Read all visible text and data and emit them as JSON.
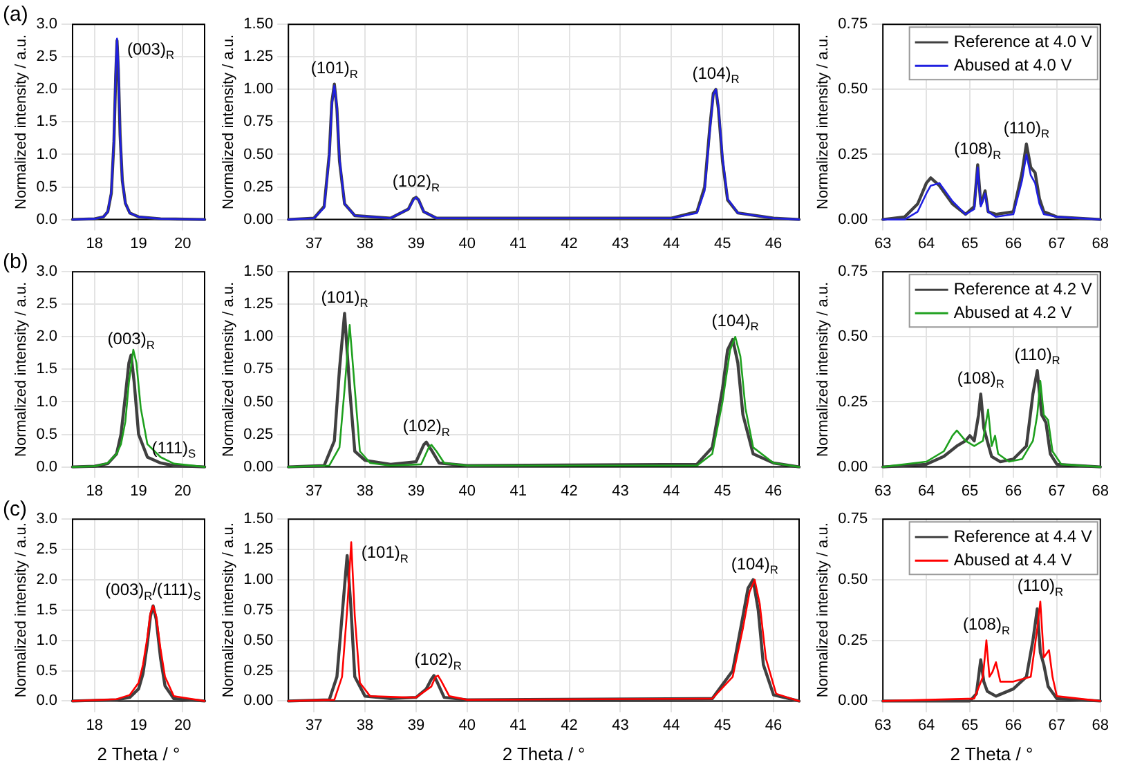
{
  "chart_data": [
    {
      "type": "line",
      "title": "(a)",
      "ylabel": "Normalized intensity / a.u.",
      "xlim": [
        17.5,
        20.5
      ],
      "xticks": [
        18,
        19,
        20
      ],
      "ylim": [
        0,
        3
      ],
      "yticks": [
        {
          "value": 0,
          "label": "0.0"
        },
        {
          "value": 0.5,
          "label": "0.5"
        },
        {
          "value": 1,
          "label": "1.0"
        },
        {
          "value": 1.5,
          "label": "1.5"
        },
        {
          "value": 2,
          "label": "2.0"
        },
        {
          "value": 2.5,
          "label": "2.5"
        },
        {
          "value": 3,
          "label": "3.0"
        }
      ],
      "grid": true,
      "marker": "none",
      "annotations": [
        {
          "text": "(003)$_{R}$",
          "x": 18.51,
          "y": 2.78
        }
      ],
      "series": [
        {
          "color": "#404040",
          "x": [
            17.5,
            18.0,
            18.2,
            18.3,
            18.38,
            18.44,
            18.48,
            18.51,
            18.54,
            18.58,
            18.63,
            18.7,
            18.8,
            19.0,
            19.5,
            20.5
          ],
          "values": [
            0,
            0.01,
            0.04,
            0.12,
            0.4,
            1.2,
            2.2,
            2.75,
            2.3,
            1.3,
            0.6,
            0.25,
            0.1,
            0.04,
            0.01,
            0
          ]
        },
        {
          "color": "#1f1fe0",
          "x": [
            17.5,
            18.0,
            18.2,
            18.3,
            18.38,
            18.44,
            18.48,
            18.51,
            18.54,
            18.58,
            18.63,
            18.7,
            18.8,
            19.0,
            19.5,
            20.5
          ],
          "values": [
            0,
            0.01,
            0.04,
            0.12,
            0.42,
            1.25,
            2.3,
            2.78,
            2.35,
            1.3,
            0.6,
            0.25,
            0.1,
            0.04,
            0.01,
            0
          ]
        }
      ]
    },
    {
      "type": "line",
      "ylabel": "Normalized intensity / a.u.",
      "xlim": [
        36.5,
        46.5
      ],
      "xticks": [
        37,
        38,
        39,
        40,
        41,
        42,
        43,
        44,
        45,
        46
      ],
      "ylim": [
        0,
        1.5
      ],
      "yticks": [
        {
          "value": 0,
          "label": "0.00"
        },
        {
          "value": 0.25,
          "label": "0.25"
        },
        {
          "value": 0.5,
          "label": "0.50"
        },
        {
          "value": 0.75,
          "label": "0.75"
        },
        {
          "value": 1,
          "label": "1.00"
        },
        {
          "value": 1.25,
          "label": "1.25"
        },
        {
          "value": 1.5,
          "label": "1.50"
        }
      ],
      "grid": true,
      "marker": "none",
      "annotations": [
        {
          "text": "(101)$_{R}$",
          "x": 37.4,
          "y": 1.04
        },
        {
          "text": "(102)$_{R}$",
          "x": 39.0,
          "y": 0.17
        },
        {
          "text": "(104)$_{R}$",
          "x": 44.87,
          "y": 1.0
        }
      ],
      "series": [
        {
          "color": "#404040",
          "x": [
            36.5,
            37.0,
            37.2,
            37.3,
            37.35,
            37.4,
            37.45,
            37.5,
            37.6,
            37.8,
            38.5,
            38.85,
            38.95,
            39.0,
            39.05,
            39.15,
            39.4,
            44.0,
            44.5,
            44.65,
            44.75,
            44.82,
            44.87,
            44.92,
            45.0,
            45.1,
            45.3,
            46.0,
            46.5
          ],
          "values": [
            0,
            0.01,
            0.1,
            0.5,
            0.9,
            1.04,
            0.85,
            0.45,
            0.12,
            0.03,
            0.01,
            0.08,
            0.16,
            0.17,
            0.15,
            0.06,
            0.01,
            0.01,
            0.06,
            0.25,
            0.7,
            0.97,
            1.0,
            0.85,
            0.45,
            0.15,
            0.05,
            0.01,
            0
          ]
        },
        {
          "color": "#1f1fe0",
          "x": [
            36.5,
            37.0,
            37.2,
            37.3,
            37.35,
            37.4,
            37.45,
            37.5,
            37.6,
            37.8,
            38.5,
            38.85,
            38.95,
            39.0,
            39.05,
            39.15,
            39.4,
            44.0,
            44.5,
            44.65,
            44.75,
            44.82,
            44.87,
            44.92,
            45.0,
            45.1,
            45.3,
            46.0,
            46.5
          ],
          "values": [
            0,
            0.01,
            0.09,
            0.48,
            0.88,
            1.03,
            0.87,
            0.47,
            0.12,
            0.03,
            0.01,
            0.08,
            0.15,
            0.17,
            0.15,
            0.06,
            0.01,
            0.01,
            0.05,
            0.22,
            0.67,
            0.96,
            1.0,
            0.87,
            0.48,
            0.16,
            0.05,
            0.01,
            0
          ]
        }
      ]
    },
    {
      "type": "line",
      "ylabel": "Normalized intensity / a.u.",
      "xlim": [
        63,
        68
      ],
      "xticks": [
        63,
        64,
        65,
        66,
        67,
        68
      ],
      "ylim": [
        0,
        0.75
      ],
      "yticks": [
        {
          "value": 0,
          "label": "0.00"
        },
        {
          "value": 0.25,
          "label": "0.25"
        },
        {
          "value": 0.5,
          "label": "0.50"
        },
        {
          "value": 0.75,
          "label": "0.75"
        }
      ],
      "grid": true,
      "marker": "none",
      "legend": "top right",
      "annotations": [
        {
          "text": "(108)$_{R}$",
          "x": 65.18,
          "y": 0.21
        },
        {
          "text": "(110)$_{R}$",
          "x": 66.3,
          "y": 0.29
        }
      ],
      "series": [
        {
          "name": "Reference at 4.0 V",
          "color": "#404040",
          "x": [
            63,
            63.5,
            63.8,
            64.0,
            64.1,
            64.3,
            64.6,
            64.9,
            65.1,
            65.18,
            65.25,
            65.3,
            65.35,
            65.42,
            65.6,
            66.0,
            66.2,
            66.3,
            66.4,
            66.5,
            66.6,
            66.7,
            67.0,
            68
          ],
          "values": [
            0,
            0.01,
            0.06,
            0.14,
            0.16,
            0.13,
            0.06,
            0.02,
            0.05,
            0.21,
            0.06,
            0.08,
            0.11,
            0.03,
            0.02,
            0.03,
            0.18,
            0.29,
            0.2,
            0.18,
            0.08,
            0.03,
            0.01,
            0
          ]
        },
        {
          "name": "Abused at 4.0 V",
          "color": "#1f1fe0",
          "x": [
            63,
            63.5,
            63.8,
            64.0,
            64.1,
            64.3,
            64.6,
            64.9,
            65.1,
            65.18,
            65.25,
            65.3,
            65.35,
            65.42,
            65.6,
            66.0,
            66.2,
            66.3,
            66.4,
            66.5,
            66.6,
            66.7,
            67.0,
            68
          ],
          "values": [
            0,
            0,
            0.03,
            0.1,
            0.13,
            0.14,
            0.07,
            0.02,
            0.04,
            0.2,
            0.05,
            0.07,
            0.1,
            0.03,
            0.01,
            0.02,
            0.15,
            0.25,
            0.17,
            0.14,
            0.06,
            0.02,
            0.01,
            0
          ]
        }
      ]
    },
    {
      "type": "line",
      "title": "(b)",
      "ylabel": "Normalized intensity / a.u.",
      "xlim": [
        17.5,
        20.5
      ],
      "xticks": [
        18,
        19,
        20
      ],
      "ylim": [
        0,
        3
      ],
      "yticks": [
        {
          "value": 0,
          "label": "0.0"
        },
        {
          "value": 0.5,
          "label": "0.5"
        },
        {
          "value": 1,
          "label": "1.0"
        },
        {
          "value": 1.5,
          "label": "1.5"
        },
        {
          "value": 2,
          "label": "2.0"
        },
        {
          "value": 2.5,
          "label": "2.5"
        },
        {
          "value": 3,
          "label": "3.0"
        }
      ],
      "grid": true,
      "marker": "none",
      "annotations": [
        {
          "text": "(003)$_{R}$",
          "x": 18.83,
          "y": 1.72
        },
        {
          "text": "(111)$_{S}$",
          "x": 19.8,
          "y": 0.05
        }
      ],
      "series": [
        {
          "color": "#404040",
          "x": [
            17.5,
            18.0,
            18.3,
            18.5,
            18.6,
            18.7,
            18.78,
            18.83,
            18.9,
            19.0,
            19.2,
            19.5,
            19.8,
            20.5
          ],
          "values": [
            0,
            0.01,
            0.05,
            0.2,
            0.5,
            1.1,
            1.6,
            1.72,
            1.3,
            0.5,
            0.15,
            0.06,
            0.02,
            0
          ]
        },
        {
          "color": "#1ea01e",
          "x": [
            17.5,
            18.0,
            18.3,
            18.5,
            18.6,
            18.7,
            18.78,
            18.88,
            18.95,
            19.05,
            19.2,
            19.5,
            19.8,
            20.5
          ],
          "values": [
            0,
            0.01,
            0.06,
            0.2,
            0.35,
            0.7,
            1.3,
            1.8,
            1.6,
            0.9,
            0.35,
            0.15,
            0.05,
            0
          ]
        }
      ]
    },
    {
      "type": "line",
      "ylabel": "Normalized intensity / a.u.",
      "xlim": [
        36.5,
        46.5
      ],
      "xticks": [
        37,
        38,
        39,
        40,
        41,
        42,
        43,
        44,
        45,
        46
      ],
      "ylim": [
        0,
        1.5
      ],
      "yticks": [
        {
          "value": 0,
          "label": "0.00"
        },
        {
          "value": 0.25,
          "label": "0.25"
        },
        {
          "value": 0.5,
          "label": "0.50"
        },
        {
          "value": 0.75,
          "label": "0.75"
        },
        {
          "value": 1,
          "label": "1.00"
        },
        {
          "value": 1.25,
          "label": "1.25"
        },
        {
          "value": 1.5,
          "label": "1.50"
        }
      ],
      "grid": true,
      "marker": "none",
      "annotations": [
        {
          "text": "(101)$_{R}$",
          "x": 37.6,
          "y": 1.18
        },
        {
          "text": "(102)$_{R}$",
          "x": 39.2,
          "y": 0.19
        },
        {
          "text": "(104)$_{R}$",
          "x": 45.25,
          "y": 1.0
        }
      ],
      "series": [
        {
          "color": "#404040",
          "x": [
            36.5,
            37.2,
            37.4,
            37.5,
            37.6,
            37.7,
            37.8,
            38.0,
            38.5,
            39.0,
            39.15,
            39.2,
            39.3,
            39.45,
            40.0,
            44.5,
            44.8,
            45.0,
            45.1,
            45.2,
            45.3,
            45.4,
            45.6,
            46.0,
            46.5
          ],
          "values": [
            0,
            0.01,
            0.2,
            0.75,
            1.18,
            0.6,
            0.12,
            0.05,
            0.02,
            0.04,
            0.17,
            0.19,
            0.13,
            0.03,
            0.01,
            0.02,
            0.15,
            0.6,
            0.9,
            0.98,
            0.8,
            0.4,
            0.1,
            0.03,
            0
          ]
        },
        {
          "color": "#1ea01e",
          "x": [
            36.5,
            37.3,
            37.5,
            37.6,
            37.7,
            37.8,
            37.9,
            38.1,
            38.5,
            39.1,
            39.25,
            39.3,
            39.4,
            39.55,
            40.0,
            44.5,
            44.8,
            45.0,
            45.15,
            45.25,
            45.35,
            45.45,
            45.6,
            46.0,
            46.5
          ],
          "values": [
            0,
            0.01,
            0.15,
            0.6,
            1.09,
            0.6,
            0.12,
            0.03,
            0.01,
            0.02,
            0.15,
            0.17,
            0.12,
            0.03,
            0.01,
            0.01,
            0.1,
            0.5,
            0.9,
            1.0,
            0.85,
            0.45,
            0.15,
            0.03,
            0
          ]
        }
      ]
    },
    {
      "type": "line",
      "ylabel": "Normalized intensity / a.u.",
      "xlim": [
        63,
        68
      ],
      "xticks": [
        63,
        64,
        65,
        66,
        67,
        68
      ],
      "ylim": [
        0,
        0.75
      ],
      "yticks": [
        {
          "value": 0,
          "label": "0.00"
        },
        {
          "value": 0.25,
          "label": "0.25"
        },
        {
          "value": 0.5,
          "label": "0.50"
        },
        {
          "value": 0.75,
          "label": "0.75"
        }
      ],
      "grid": true,
      "marker": "none",
      "legend": "top right",
      "annotations": [
        {
          "text": "(108)$_{R}$",
          "x": 65.25,
          "y": 0.28
        },
        {
          "text": "(110)$_{R}$",
          "x": 66.55,
          "y": 0.37
        }
      ],
      "series": [
        {
          "name": "Reference at 4.2 V",
          "color": "#404040",
          "x": [
            63,
            64,
            64.4,
            64.7,
            64.9,
            65.0,
            65.1,
            65.2,
            65.25,
            65.32,
            65.4,
            65.5,
            65.7,
            66.0,
            66.3,
            66.45,
            66.55,
            66.65,
            66.75,
            66.85,
            67.0,
            68
          ],
          "values": [
            0,
            0.01,
            0.04,
            0.08,
            0.1,
            0.12,
            0.1,
            0.2,
            0.28,
            0.15,
            0.1,
            0.04,
            0.02,
            0.03,
            0.08,
            0.28,
            0.37,
            0.2,
            0.17,
            0.05,
            0.01,
            0
          ]
        },
        {
          "name": "Abused at 4.2 V",
          "color": "#1ea01e",
          "x": [
            63,
            64,
            64.4,
            64.6,
            64.7,
            64.9,
            65.1,
            65.3,
            65.42,
            65.5,
            65.58,
            65.65,
            65.9,
            66.2,
            66.45,
            66.55,
            66.62,
            66.7,
            66.8,
            66.9,
            67.1,
            68
          ],
          "values": [
            0,
            0.02,
            0.06,
            0.12,
            0.14,
            0.1,
            0.08,
            0.1,
            0.22,
            0.08,
            0.12,
            0.05,
            0.02,
            0.03,
            0.1,
            0.2,
            0.33,
            0.2,
            0.18,
            0.06,
            0.01,
            0
          ]
        }
      ]
    },
    {
      "type": "line",
      "title": "(c)",
      "ylabel": "Normalized intensity / a.u.",
      "xlabel": "2 Theta / °",
      "xlim": [
        17.5,
        20.5
      ],
      "xticks": [
        18,
        19,
        20
      ],
      "ylim": [
        0,
        3
      ],
      "yticks": [
        {
          "value": 0,
          "label": "0.0"
        },
        {
          "value": 0.5,
          "label": "0.5"
        },
        {
          "value": 1,
          "label": "1.0"
        },
        {
          "value": 1.5,
          "label": "1.5"
        },
        {
          "value": 2,
          "label": "2.0"
        },
        {
          "value": 2.5,
          "label": "2.5"
        },
        {
          "value": 3,
          "label": "3.0"
        }
      ],
      "grid": true,
      "marker": "none",
      "annotations": [
        {
          "text": "(003)$_{R}$/(111)$_{S}$",
          "x": 19.33,
          "y": 1.57
        }
      ],
      "series": [
        {
          "color": "#404040",
          "x": [
            17.5,
            18.5,
            18.8,
            19.0,
            19.1,
            19.2,
            19.27,
            19.33,
            19.4,
            19.5,
            19.6,
            19.8,
            20.5
          ],
          "values": [
            0,
            0.02,
            0.06,
            0.2,
            0.45,
            0.95,
            1.4,
            1.57,
            1.35,
            0.7,
            0.25,
            0.04,
            0
          ]
        },
        {
          "color": "#ff0000",
          "x": [
            17.5,
            18.5,
            18.8,
            19.0,
            19.1,
            19.2,
            19.27,
            19.33,
            19.4,
            19.5,
            19.6,
            19.8,
            20.5
          ],
          "values": [
            0,
            0.03,
            0.1,
            0.3,
            0.6,
            1.05,
            1.45,
            1.57,
            1.4,
            0.85,
            0.4,
            0.08,
            0
          ]
        }
      ]
    },
    {
      "type": "line",
      "ylabel": "Normalized intensity / a.u.",
      "xlabel": "2 Theta / °",
      "xlim": [
        36.5,
        46.5
      ],
      "xticks": [
        37,
        38,
        39,
        40,
        41,
        42,
        43,
        44,
        45,
        46
      ],
      "ylim": [
        0,
        1.5
      ],
      "yticks": [
        {
          "value": 0,
          "label": "0.00"
        },
        {
          "value": 0.25,
          "label": "0.25"
        },
        {
          "value": 0.5,
          "label": "0.50"
        },
        {
          "value": 0.75,
          "label": "0.75"
        },
        {
          "value": 1,
          "label": "1.00"
        },
        {
          "value": 1.25,
          "label": "1.25"
        },
        {
          "value": 1.5,
          "label": "1.50"
        }
      ],
      "grid": true,
      "marker": "none",
      "annotations": [
        {
          "text": "(101)$_{R}$",
          "x": 37.73,
          "y": 1.31
        },
        {
          "text": "(102)$_{R}$",
          "x": 39.43,
          "y": 0.21
        },
        {
          "text": "(104)$_{R}$",
          "x": 45.63,
          "y": 1.0
        }
      ],
      "series": [
        {
          "color": "#404040",
          "x": [
            36.5,
            37.3,
            37.45,
            37.55,
            37.65,
            37.72,
            37.8,
            38.0,
            38.5,
            39.0,
            39.2,
            39.3,
            39.35,
            39.42,
            39.55,
            40.0,
            44.8,
            45.2,
            45.4,
            45.5,
            45.6,
            45.7,
            45.8,
            46.0,
            46.5
          ],
          "values": [
            0,
            0.01,
            0.2,
            0.7,
            1.2,
            0.8,
            0.2,
            0.04,
            0.02,
            0.03,
            0.1,
            0.18,
            0.21,
            0.15,
            0.03,
            0.01,
            0.02,
            0.25,
            0.7,
            0.93,
            1.0,
            0.75,
            0.3,
            0.05,
            0
          ]
        },
        {
          "color": "#ff0000",
          "x": [
            36.5,
            37.4,
            37.55,
            37.65,
            37.73,
            37.8,
            37.9,
            38.1,
            38.8,
            39.0,
            39.3,
            39.38,
            39.43,
            39.5,
            39.65,
            40.0,
            44.8,
            45.2,
            45.4,
            45.53,
            45.63,
            45.73,
            45.85,
            46.05,
            46.5
          ],
          "values": [
            0,
            0.01,
            0.2,
            0.75,
            1.31,
            0.7,
            0.15,
            0.04,
            0.03,
            0.03,
            0.12,
            0.2,
            0.21,
            0.16,
            0.04,
            0.01,
            0.02,
            0.2,
            0.6,
            0.9,
            1.0,
            0.8,
            0.35,
            0.06,
            0
          ]
        }
      ]
    },
    {
      "type": "line",
      "ylabel": "Normalized intensity / a.u.",
      "xlabel": "2 Theta / °",
      "xlim": [
        63,
        68
      ],
      "xticks": [
        63,
        64,
        65,
        66,
        67,
        68
      ],
      "ylim": [
        0,
        0.75
      ],
      "yticks": [
        {
          "value": 0,
          "label": "0.00"
        },
        {
          "value": 0.25,
          "label": "0.25"
        },
        {
          "value": 0.5,
          "label": "0.50"
        },
        {
          "value": 0.75,
          "label": "0.75"
        }
      ],
      "grid": true,
      "marker": "none",
      "legend": "top right",
      "annotations": [
        {
          "text": "(108)$_{R}$",
          "x": 65.38,
          "y": 0.25
        },
        {
          "text": "(110)$_{R}$",
          "x": 66.62,
          "y": 0.41
        }
      ],
      "series": [
        {
          "name": "Reference at 4.4 V",
          "color": "#404040",
          "x": [
            63,
            65.0,
            65.15,
            65.25,
            65.32,
            65.4,
            65.6,
            66.0,
            66.3,
            66.45,
            66.55,
            66.62,
            66.7,
            66.8,
            67.0,
            68
          ],
          "values": [
            0,
            0,
            0.03,
            0.17,
            0.08,
            0.04,
            0.02,
            0.05,
            0.1,
            0.25,
            0.38,
            0.2,
            0.15,
            0.06,
            0.01,
            0
          ]
        },
        {
          "name": "Abused at 4.4 V",
          "color": "#ff0000",
          "x": [
            63,
            65.1,
            65.3,
            65.38,
            65.45,
            65.52,
            65.6,
            65.7,
            66.0,
            66.4,
            66.55,
            66.62,
            66.7,
            66.82,
            66.9,
            67.0,
            68
          ],
          "values": [
            0,
            0.01,
            0.1,
            0.25,
            0.1,
            0.12,
            0.16,
            0.08,
            0.08,
            0.1,
            0.3,
            0.41,
            0.18,
            0.21,
            0.1,
            0.02,
            0
          ]
        }
      ]
    }
  ]
}
